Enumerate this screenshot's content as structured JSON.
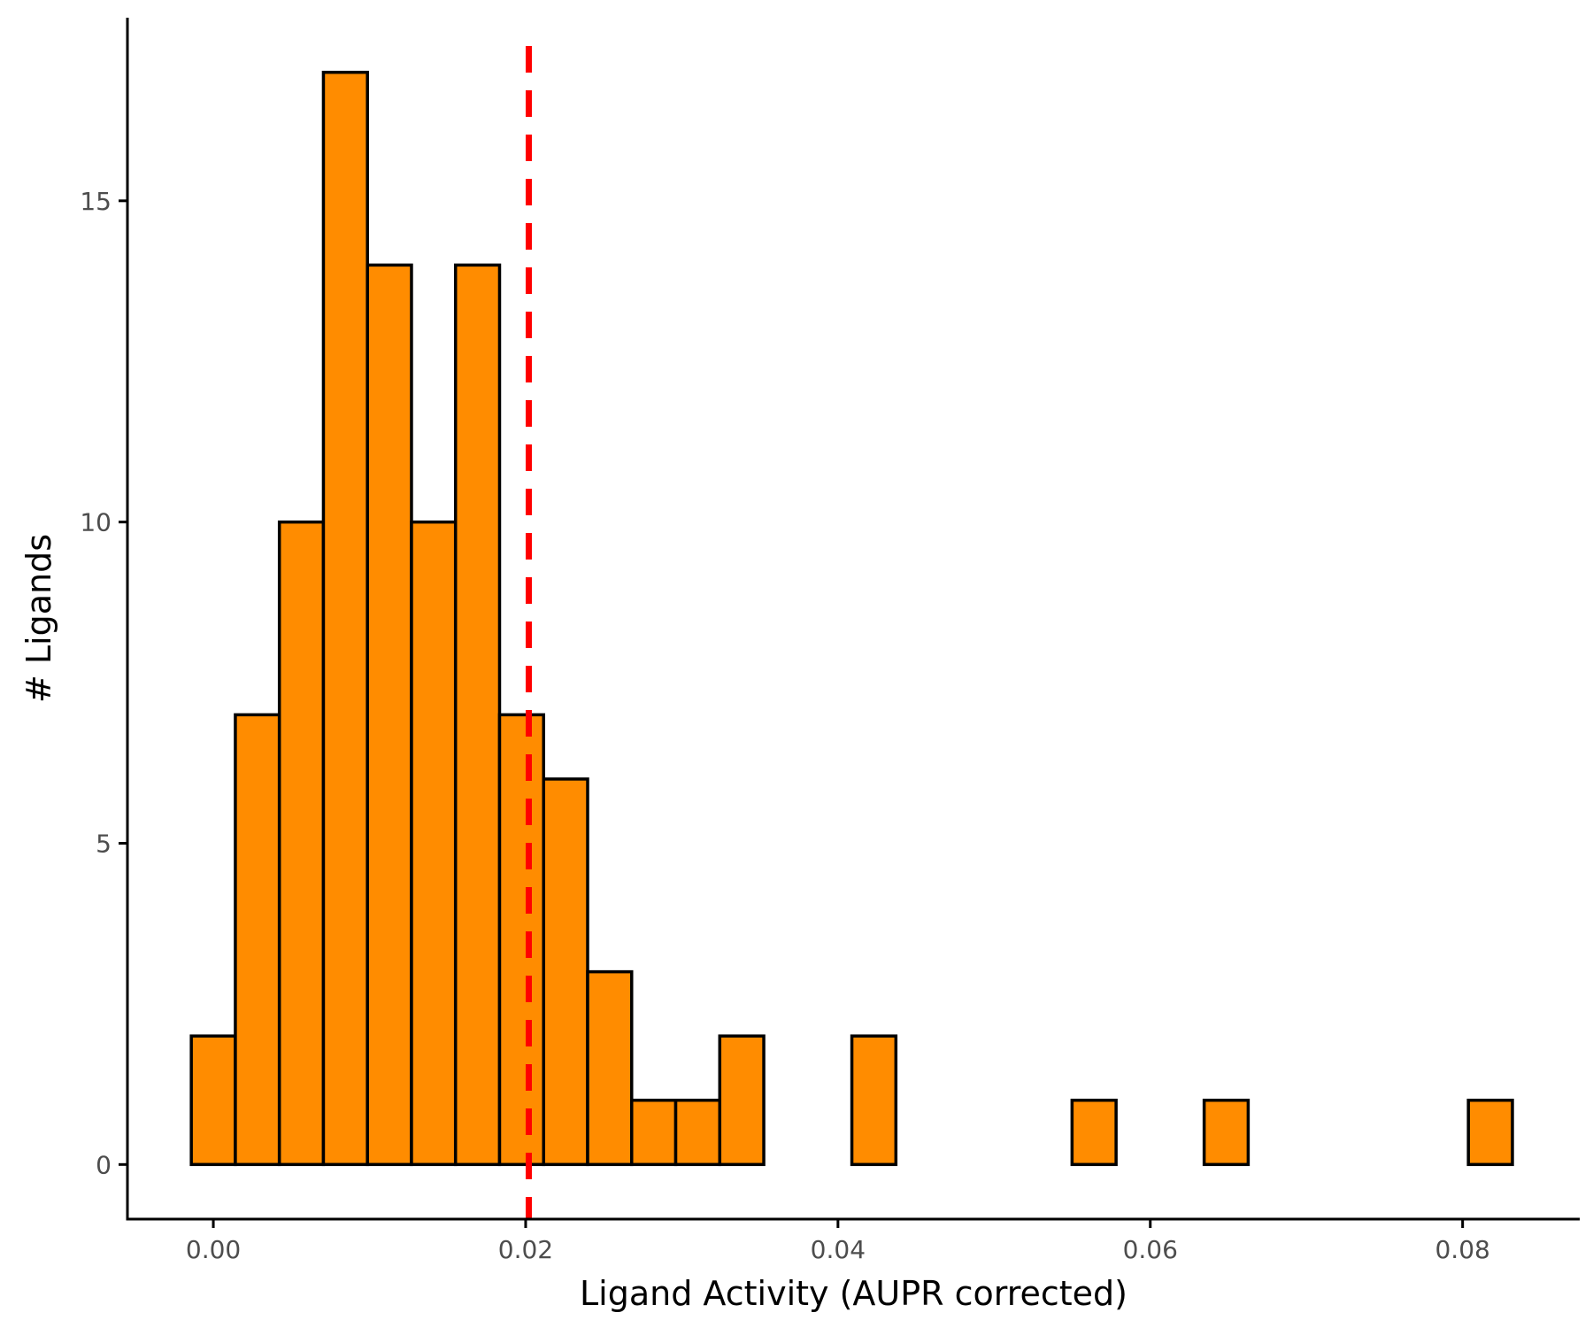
{
  "chart_data": {
    "type": "bar",
    "title": "",
    "xlabel": "Ligand Activity (AUPR corrected)",
    "ylabel": "# Ligands",
    "xlim": [
      -0.0055,
      0.0875
    ],
    "ylim": [
      -0.85,
      17.85
    ],
    "grid": false,
    "bin_width": 0.00282,
    "bins": [
      {
        "x": 0.0,
        "count": 2
      },
      {
        "x": 0.00282,
        "count": 7
      },
      {
        "x": 0.00564,
        "count": 10
      },
      {
        "x": 0.00846,
        "count": 17
      },
      {
        "x": 0.01128,
        "count": 14
      },
      {
        "x": 0.0141,
        "count": 10
      },
      {
        "x": 0.01692,
        "count": 14
      },
      {
        "x": 0.01974,
        "count": 7
      },
      {
        "x": 0.02256,
        "count": 6
      },
      {
        "x": 0.02538,
        "count": 3
      },
      {
        "x": 0.0282,
        "count": 1
      },
      {
        "x": 0.03102,
        "count": 1
      },
      {
        "x": 0.03384,
        "count": 2
      },
      {
        "x": 0.03666,
        "count": 0
      },
      {
        "x": 0.03948,
        "count": 0
      },
      {
        "x": 0.0423,
        "count": 2
      },
      {
        "x": 0.04512,
        "count": 0
      },
      {
        "x": 0.04794,
        "count": 0
      },
      {
        "x": 0.05076,
        "count": 0
      },
      {
        "x": 0.05358,
        "count": 0
      },
      {
        "x": 0.0564,
        "count": 1
      },
      {
        "x": 0.05922,
        "count": 0
      },
      {
        "x": 0.06204,
        "count": 0
      },
      {
        "x": 0.06486,
        "count": 1
      },
      {
        "x": 0.06768,
        "count": 0
      },
      {
        "x": 0.0705,
        "count": 0
      },
      {
        "x": 0.07332,
        "count": 0
      },
      {
        "x": 0.07614,
        "count": 0
      },
      {
        "x": 0.07896,
        "count": 0
      },
      {
        "x": 0.08178,
        "count": 1
      }
    ],
    "threshold_line": {
      "x": 0.0202,
      "color": "#ff0000",
      "style": "dashed"
    },
    "x_ticks": [
      {
        "value": 0.0,
        "label": "0.00"
      },
      {
        "value": 0.02,
        "label": "0.02"
      },
      {
        "value": 0.04,
        "label": "0.04"
      },
      {
        "value": 0.06,
        "label": "0.06"
      },
      {
        "value": 0.08,
        "label": "0.08"
      }
    ],
    "y_ticks": [
      {
        "value": 0,
        "label": "0"
      },
      {
        "value": 5,
        "label": "5"
      },
      {
        "value": 10,
        "label": "10"
      },
      {
        "value": 15,
        "label": "15"
      }
    ],
    "colors": {
      "bar_fill": "#ff8c00",
      "bar_stroke": "#000000",
      "axis": "#000000",
      "tick_label": "#4d4d4d"
    }
  }
}
